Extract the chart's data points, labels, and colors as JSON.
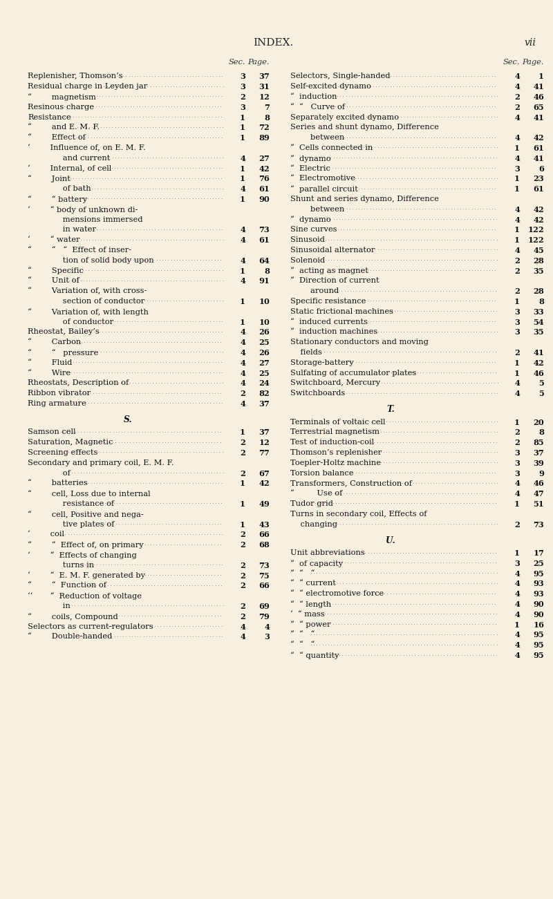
{
  "bg_color": "#f5f0e0",
  "title": "INDEX.",
  "page_num": "vii",
  "left_entries": [
    {
      "text": "Sec.",
      "sec_label": true,
      "page_label": "Page."
    },
    {
      "text": "Replenisher, Thomson’s",
      "dots": true,
      "sec": "3",
      "page": "37",
      "indent": 0
    },
    {
      "text": "Residual charge in Leyden jar",
      "dots": true,
      "sec": "3",
      "page": "31",
      "indent": 0
    },
    {
      "text": "“        magnetism",
      "dots": true,
      "sec": "2",
      "page": "12",
      "indent": 1
    },
    {
      "text": "Resinous charge",
      "dots": true,
      "sec": "3",
      "page": "7",
      "indent": 0
    },
    {
      "text": "Resistance",
      "dots": true,
      "sec": "1",
      "page": "8",
      "indent": 0
    },
    {
      "text": "“        and E. M. F.",
      "dots": true,
      "sec": "1",
      "page": "72",
      "indent": 1
    },
    {
      "text": "“        Effect of",
      "dots": true,
      "sec": "1",
      "page": "89",
      "indent": 1
    },
    {
      "text": "‘        Influence of, on E. M. F.",
      "dots": false,
      "sec": "",
      "page": "",
      "indent": 1
    },
    {
      "text": "              and current",
      "dots": true,
      "sec": "4",
      "page": "27",
      "indent": 2
    },
    {
      "text": "‘        Internal, of cell",
      "dots": true,
      "sec": "1",
      "page": "42",
      "indent": 1
    },
    {
      "text": "“        Joint",
      "dots": true,
      "sec": "1",
      "page": "76",
      "indent": 1
    },
    {
      "text": "              of bath",
      "dots": true,
      "sec": "4",
      "page": "61",
      "indent": 2
    },
    {
      "text": "“        “ battery",
      "dots": true,
      "sec": "1",
      "page": "90",
      "indent": 1
    },
    {
      "text": "‘        “ body of unknown di-",
      "dots": false,
      "sec": "",
      "page": "",
      "indent": 1
    },
    {
      "text": "              mensions immersed",
      "dots": false,
      "sec": "",
      "page": "",
      "indent": 2
    },
    {
      "text": "              in water",
      "dots": true,
      "sec": "4",
      "page": "73",
      "indent": 2
    },
    {
      "text": "‘        “ water",
      "dots": true,
      "sec": "4",
      "page": "61",
      "indent": 1
    },
    {
      "text": "“        “   “  Effect of inser-",
      "dots": false,
      "sec": "",
      "page": "",
      "indent": 1
    },
    {
      "text": "              tion of solid body upon",
      "dots": true,
      "sec": "4",
      "page": "64",
      "indent": 2
    },
    {
      "text": "“        Specific",
      "dots": true,
      "sec": "1",
      "page": "8",
      "indent": 1
    },
    {
      "text": "“        Unit of",
      "dots": true,
      "sec": "4",
      "page": "91",
      "indent": 1
    },
    {
      "text": "“        Variation of, with cross-",
      "dots": false,
      "sec": "",
      "page": "",
      "indent": 1
    },
    {
      "text": "              section of conductor",
      "dots": true,
      "sec": "1",
      "page": "10",
      "indent": 2
    },
    {
      "text": "“        Variation of, with length",
      "dots": false,
      "sec": "",
      "page": "",
      "indent": 1
    },
    {
      "text": "              of conductor",
      "dots": true,
      "sec": "1",
      "page": "10",
      "indent": 2
    },
    {
      "text": "Rheostat, Bailey’s",
      "dots": true,
      "sec": "4",
      "page": "26",
      "indent": 0
    },
    {
      "text": "“        Carbon",
      "dots": true,
      "sec": "4",
      "page": "25",
      "indent": 1
    },
    {
      "text": "“        “   pressure",
      "dots": true,
      "sec": "4",
      "page": "26",
      "indent": 1
    },
    {
      "text": "“        Fluid",
      "dots": true,
      "sec": "4",
      "page": "27",
      "indent": 1
    },
    {
      "text": "“        Wire",
      "dots": true,
      "sec": "4",
      "page": "25",
      "indent": 1
    },
    {
      "text": "Rheostats, Description of",
      "dots": true,
      "sec": "4",
      "page": "24",
      "indent": 0
    },
    {
      "text": "Ribbon vibrator",
      "dots": true,
      "sec": "2",
      "page": "82",
      "indent": 0
    },
    {
      "text": "Ring armature",
      "dots": true,
      "sec": "4",
      "page": "37",
      "indent": 0
    },
    {
      "text": "S.",
      "sec": "",
      "page": "",
      "indent": 0,
      "section_letter": true
    },
    {
      "text": "Samson cell",
      "dots": true,
      "sec": "1",
      "page": "37",
      "indent": 0
    },
    {
      "text": "Saturation, Magnetic",
      "dots": true,
      "sec": "2",
      "page": "12",
      "indent": 0
    },
    {
      "text": "Screening effects",
      "dots": true,
      "sec": "2",
      "page": "77",
      "indent": 0
    },
    {
      "text": "Secondary and primary coil, E. M. F.",
      "dots": false,
      "sec": "",
      "page": "",
      "indent": 0
    },
    {
      "text": "              of",
      "dots": true,
      "sec": "2",
      "page": "67",
      "indent": 2
    },
    {
      "text": "“        batteries",
      "dots": true,
      "sec": "1",
      "page": "42",
      "indent": 1
    },
    {
      "text": "“        cell, Loss due to internal",
      "dots": false,
      "sec": "",
      "page": "",
      "indent": 1
    },
    {
      "text": "              resistance of",
      "dots": true,
      "sec": "1",
      "page": "49",
      "indent": 2
    },
    {
      "text": "“        cell, Positive and nega-",
      "dots": false,
      "sec": "",
      "page": "",
      "indent": 1
    },
    {
      "text": "              tive plates of",
      "dots": true,
      "sec": "1",
      "page": "43",
      "indent": 2
    },
    {
      "text": "‘        coil",
      "dots": true,
      "sec": "2",
      "page": "66",
      "indent": 1
    },
    {
      "text": "“        “  Effect of, on primary",
      "dots": true,
      "sec": "2",
      "page": "68",
      "indent": 1
    },
    {
      "text": "‘        “  Effects of changing",
      "dots": false,
      "sec": "",
      "page": "",
      "indent": 1
    },
    {
      "text": "              turns in",
      "dots": true,
      "sec": "2",
      "page": "73",
      "indent": 2
    },
    {
      "text": "‘        “  E. M. F. generated by",
      "dots": true,
      "sec": "2",
      "page": "75",
      "indent": 1
    },
    {
      "text": "“        “  Function of",
      "dots": true,
      "sec": "2",
      "page": "66",
      "indent": 1
    },
    {
      "text": "‘‘       “  Reduction of voltage",
      "dots": false,
      "sec": "",
      "page": "",
      "indent": 1
    },
    {
      "text": "              in",
      "dots": true,
      "sec": "2",
      "page": "69",
      "indent": 2
    },
    {
      "text": "“        coils, Compound",
      "dots": true,
      "sec": "2",
      "page": "79",
      "indent": 1
    },
    {
      "text": "Selectors as current-regulators",
      "dots": true,
      "sec": "4",
      "page": "4",
      "indent": 0
    },
    {
      "text": "“        Double-handed",
      "dots": true,
      "sec": "4",
      "page": "3",
      "indent": 1
    }
  ],
  "right_entries": [
    {
      "text": "Sec.",
      "sec_label": true,
      "page_label": "Page."
    },
    {
      "text": "Selectors, Single-handed",
      "dots": true,
      "sec": "4",
      "page": "1",
      "indent": 0
    },
    {
      "text": "Self-excited dynamo",
      "dots": true,
      "sec": "4",
      "page": "41",
      "indent": 0
    },
    {
      "text": "“  induction",
      "dots": true,
      "sec": "2",
      "page": "46",
      "indent": 1
    },
    {
      "text": "“  “   Curve of",
      "dots": true,
      "sec": "2",
      "page": "65",
      "indent": 1
    },
    {
      "text": "Separately excited dynamo",
      "dots": true,
      "sec": "4",
      "page": "41",
      "indent": 0
    },
    {
      "text": "Series and shunt dynamo, Difference",
      "dots": false,
      "sec": "",
      "page": "",
      "indent": 0
    },
    {
      "text": "        between",
      "dots": true,
      "sec": "4",
      "page": "42",
      "indent": 1
    },
    {
      "text": "“  Cells connected in",
      "dots": true,
      "sec": "1",
      "page": "61",
      "indent": 1
    },
    {
      "text": "“  dynamo",
      "dots": true,
      "sec": "4",
      "page": "41",
      "indent": 1
    },
    {
      "text": "“  Electric",
      "dots": true,
      "sec": "3",
      "page": "6",
      "indent": 1
    },
    {
      "text": "“  Electromotive",
      "dots": true,
      "sec": "1",
      "page": "23",
      "indent": 1
    },
    {
      "text": "“  parallel circuit",
      "dots": true,
      "sec": "1",
      "page": "61",
      "indent": 1
    },
    {
      "text": "Shunt and series dynamo, Difference",
      "dots": false,
      "sec": "",
      "page": "",
      "indent": 0
    },
    {
      "text": "        between",
      "dots": true,
      "sec": "4",
      "page": "42",
      "indent": 1
    },
    {
      "text": "“  dynamo",
      "dots": true,
      "sec": "4",
      "page": "42",
      "indent": 1
    },
    {
      "text": "Sine curves",
      "dots": true,
      "sec": "1",
      "page": "122",
      "indent": 0
    },
    {
      "text": "Sinusoid",
      "dots": true,
      "sec": "1",
      "page": "122",
      "indent": 0
    },
    {
      "text": "Sinusoidal alternator",
      "dots": true,
      "sec": "4",
      "page": "45",
      "indent": 0
    },
    {
      "text": "Solenoid",
      "dots": true,
      "sec": "2",
      "page": "28",
      "indent": 0
    },
    {
      "text": "“  acting as magnet",
      "dots": true,
      "sec": "2",
      "page": "35",
      "indent": 1
    },
    {
      "text": "“  Direction of current",
      "dots": false,
      "sec": "",
      "page": "",
      "indent": 1
    },
    {
      "text": "        around",
      "dots": true,
      "sec": "2",
      "page": "28",
      "indent": 2
    },
    {
      "text": "Specific resistance",
      "dots": true,
      "sec": "1",
      "page": "8",
      "indent": 0
    },
    {
      "text": "Static frictional machines",
      "dots": true,
      "sec": "3",
      "page": "33",
      "indent": 0
    },
    {
      "text": "“  induced currents",
      "dots": true,
      "sec": "3",
      "page": "54",
      "indent": 1
    },
    {
      "text": "“  induction machines",
      "dots": true,
      "sec": "3",
      "page": "35",
      "indent": 1
    },
    {
      "text": "Stationary conductors and moving",
      "dots": false,
      "sec": "",
      "page": "",
      "indent": 0
    },
    {
      "text": "    fields",
      "dots": true,
      "sec": "2",
      "page": "41",
      "indent": 1
    },
    {
      "text": "Storage-battery",
      "dots": true,
      "sec": "1",
      "page": "42",
      "indent": 0
    },
    {
      "text": "Sulfating of accumulator plates",
      "dots": true,
      "sec": "1",
      "page": "46",
      "indent": 0
    },
    {
      "text": "Switchboard, Mercury",
      "dots": true,
      "sec": "4",
      "page": "5",
      "indent": 0
    },
    {
      "text": "Switchboards",
      "dots": true,
      "sec": "4",
      "page": "5",
      "indent": 0
    },
    {
      "text": "T.",
      "sec": "",
      "page": "",
      "indent": 0,
      "section_letter": true
    },
    {
      "text": "Terminals of voltaic cell",
      "dots": true,
      "sec": "1",
      "page": "20",
      "indent": 0
    },
    {
      "text": "Terrestrial magnetism",
      "dots": true,
      "sec": "2",
      "page": "8",
      "indent": 0
    },
    {
      "text": "Test of induction-coil",
      "dots": true,
      "sec": "2",
      "page": "85",
      "indent": 0
    },
    {
      "text": "Thomson’s replenisher",
      "dots": true,
      "sec": "3",
      "page": "37",
      "indent": 0
    },
    {
      "text": "Toepler-Holtz machine",
      "dots": true,
      "sec": "3",
      "page": "39",
      "indent": 0
    },
    {
      "text": "Torsion balance",
      "dots": true,
      "sec": "3",
      "page": "9",
      "indent": 0
    },
    {
      "text": "Transformers, Construction of",
      "dots": true,
      "sec": "4",
      "page": "46",
      "indent": 0
    },
    {
      "text": "“         Use of",
      "dots": true,
      "sec": "4",
      "page": "47",
      "indent": 1
    },
    {
      "text": "Tudor grid",
      "dots": true,
      "sec": "1",
      "page": "51",
      "indent": 0
    },
    {
      "text": "Turns in secondary coil, Effects of",
      "dots": false,
      "sec": "",
      "page": "",
      "indent": 0
    },
    {
      "text": "    changing",
      "dots": true,
      "sec": "2",
      "page": "73",
      "indent": 1
    },
    {
      "text": "U.",
      "sec": "",
      "page": "",
      "indent": 0,
      "section_letter": true
    },
    {
      "text": "Unit abbreviations",
      "dots": true,
      "sec": "1",
      "page": "17",
      "indent": 0
    },
    {
      "text": "“  of capacity",
      "dots": true,
      "sec": "3",
      "page": "25",
      "indent": 1
    },
    {
      "text": "“  “   “",
      "dots": true,
      "sec": "4",
      "page": "95",
      "indent": 1
    },
    {
      "text": "“  “ current",
      "dots": true,
      "sec": "4",
      "page": "93",
      "indent": 1
    },
    {
      "text": "“  “ electromotive force",
      "dots": true,
      "sec": "4",
      "page": "93",
      "indent": 1
    },
    {
      "text": "“  “ length",
      "dots": true,
      "sec": "4",
      "page": "90",
      "indent": 1
    },
    {
      "text": "‘  “ mass",
      "dots": true,
      "sec": "4",
      "page": "90",
      "indent": 1
    },
    {
      "text": "“  “ power",
      "dots": true,
      "sec": "1",
      "page": "16",
      "indent": 1
    },
    {
      "text": "“  “   “",
      "dots": true,
      "sec": "4",
      "page": "95",
      "indent": 1
    },
    {
      "text": "“  “   “",
      "dots": true,
      "sec": "4",
      "page": "95",
      "indent": 1
    },
    {
      "text": "“  “ quantity",
      "dots": true,
      "sec": "4",
      "page": "95",
      "indent": 1
    }
  ]
}
